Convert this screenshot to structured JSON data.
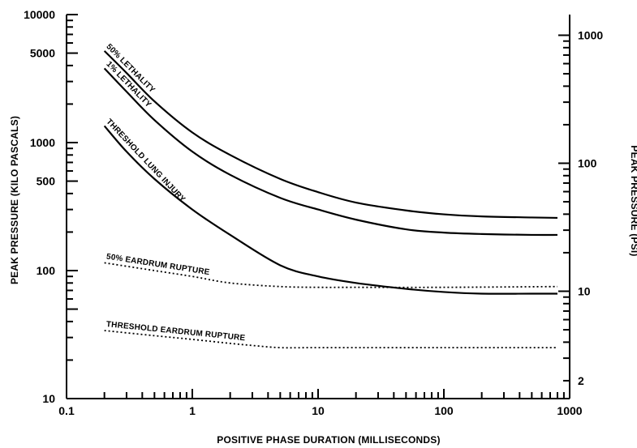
{
  "chart_data": {
    "type": "line",
    "title": "",
    "xlabel": "POSITIVE PHASE DURATION (MILLISECONDS)",
    "ylabel_left": "PEAK PRESSURE (KILO PASCALS)",
    "ylabel_right": "PEAK PRESSURE (PSI)",
    "xscale": "log",
    "yscale": "log",
    "xlim": [
      0.1,
      1000
    ],
    "ylim": [
      10,
      10000
    ],
    "right_ylim": [
      1.45,
      1450
    ],
    "x_tick_labels": [
      "0.1",
      "1",
      "10",
      "100",
      "1000"
    ],
    "y_left_tick_labels": [
      "10",
      "100",
      "500",
      "1000",
      "5000",
      "10000"
    ],
    "y_right_tick_labels": [
      "2",
      "10",
      "100",
      "1000"
    ],
    "grid": false,
    "legend": "none",
    "series": [
      {
        "name": "50% LETHALITY",
        "style": "solid",
        "x": [
          0.2,
          0.3,
          0.5,
          1,
          2,
          5,
          10,
          20,
          50,
          100,
          200,
          500,
          800
        ],
        "y": [
          5200,
          3500,
          2100,
          1200,
          800,
          520,
          410,
          340,
          295,
          275,
          265,
          260,
          258
        ]
      },
      {
        "name": "1% LETHALITY",
        "style": "solid",
        "x": [
          0.2,
          0.3,
          0.5,
          1,
          2,
          5,
          10,
          20,
          50,
          100,
          200,
          500,
          800
        ],
        "y": [
          3800,
          2500,
          1500,
          850,
          560,
          370,
          300,
          250,
          210,
          198,
          193,
          190,
          190
        ]
      },
      {
        "name": "THRESHOLD LUNG INJURY",
        "style": "solid",
        "x": [
          0.2,
          0.3,
          0.5,
          1,
          2,
          5,
          10,
          20,
          50,
          100,
          200,
          500,
          800
        ],
        "y": [
          1350,
          850,
          520,
          300,
          190,
          110,
          90,
          80,
          72,
          68,
          66,
          66,
          66
        ]
      },
      {
        "name": "50% EARDRUM RUPTURE",
        "style": "dotted",
        "x": [
          0.2,
          0.5,
          1,
          2,
          5,
          10,
          20,
          100,
          800
        ],
        "y": [
          115,
          100,
          90,
          80,
          75,
          74,
          74,
          74,
          75
        ]
      },
      {
        "name": "THRESHOLD EARDRUM RUPTURE",
        "style": "dotted",
        "x": [
          0.2,
          0.5,
          1,
          2,
          3,
          5,
          10,
          100,
          800
        ],
        "y": [
          34,
          31,
          29,
          27,
          26,
          25,
          25,
          25,
          25
        ]
      }
    ]
  }
}
